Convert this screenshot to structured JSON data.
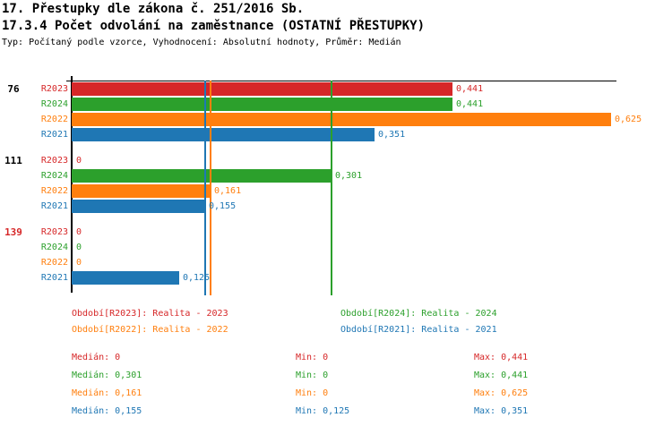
{
  "header": {
    "title_line1": "17. Přestupky dle zákona č. 251/2016 Sb.",
    "title_line2": "17.3.4 Počet odvolání na zaměstnance (OSTATNÍ PŘESTUPKY)",
    "subtitle": "Typ: Počítaný podle vzorce, Vyhodnocení: Absolutní hodnoty, Průměr: Medián"
  },
  "colors": {
    "R2023": "#d62728",
    "R2024": "#2ca02c",
    "R2022": "#ff7f0e",
    "R2021": "#1f77b4",
    "axis": "#000000",
    "group_label_default": "#000000",
    "group_label_highlight": "#d62728"
  },
  "chart_data": {
    "type": "bar",
    "orientation": "horizontal",
    "title": "17.3.4 Počet odvolání na zaměstnance (OSTATNÍ PŘESTUPKY)",
    "categories": [
      "76",
      "111",
      "139"
    ],
    "row_order": [
      "R2023",
      "R2024",
      "R2022",
      "R2021"
    ],
    "series": [
      {
        "name": "R2023",
        "legend": "Období[R2023]: Realita - 2023",
        "color": "#d62728",
        "values": [
          0.441,
          0,
          0
        ]
      },
      {
        "name": "R2024",
        "legend": "Období[R2024]: Realita - 2024",
        "color": "#2ca02c",
        "values": [
          0.441,
          0.301,
          0
        ]
      },
      {
        "name": "R2022",
        "legend": "Období[R2022]: Realita - 2022",
        "color": "#ff7f0e",
        "values": [
          0.625,
          0.161,
          0
        ]
      },
      {
        "name": "R2021",
        "legend": "Období[R2021]: Realita - 2021",
        "color": "#1f77b4",
        "values": [
          0.351,
          0.155,
          0.125
        ]
      }
    ],
    "medians": {
      "R2023": 0,
      "R2024": 0.301,
      "R2022": 0.161,
      "R2021": 0.155
    },
    "stats": {
      "R2023": {
        "median": 0,
        "min": 0,
        "max": 0.441
      },
      "R2024": {
        "median": 0.301,
        "min": 0,
        "max": 0.441
      },
      "R2022": {
        "median": 0.161,
        "min": 0,
        "max": 0.625
      },
      "R2021": {
        "median": 0.155,
        "min": 0.125,
        "max": 0.351
      }
    },
    "xlim": [
      0,
      0.64
    ],
    "grid": false,
    "legend_position": "bottom",
    "decimal_separator": ","
  },
  "groups": [
    {
      "label": "76",
      "label_color": "#000000",
      "bars": [
        {
          "series": "R2023",
          "value": 0.441,
          "display": "0,441"
        },
        {
          "series": "R2024",
          "value": 0.441,
          "display": "0,441"
        },
        {
          "series": "R2022",
          "value": 0.625,
          "display": "0,625"
        },
        {
          "series": "R2021",
          "value": 0.351,
          "display": "0,351"
        }
      ]
    },
    {
      "label": "111",
      "label_color": "#000000",
      "bars": [
        {
          "series": "R2023",
          "value": 0,
          "display": "0"
        },
        {
          "series": "R2024",
          "value": 0.301,
          "display": "0,301"
        },
        {
          "series": "R2022",
          "value": 0.161,
          "display": "0,161"
        },
        {
          "series": "R2021",
          "value": 0.155,
          "display": "0,155"
        }
      ]
    },
    {
      "label": "139",
      "label_color": "#d62728",
      "bars": [
        {
          "series": "R2023",
          "value": 0,
          "display": "0"
        },
        {
          "series": "R2024",
          "value": 0,
          "display": "0"
        },
        {
          "series": "R2022",
          "value": 0,
          "display": "0"
        },
        {
          "series": "R2021",
          "value": 0.125,
          "display": "0,125"
        }
      ]
    }
  ],
  "legend": {
    "items": [
      {
        "series": "R2023",
        "text": "Období[R2023]: Realita - 2023"
      },
      {
        "series": "R2024",
        "text": "Období[R2024]: Realita - 2024"
      },
      {
        "series": "R2022",
        "text": "Období[R2022]: Realita - 2022"
      },
      {
        "series": "R2021",
        "text": "Období[R2021]: Realita - 2021"
      }
    ]
  },
  "stats": {
    "rows": [
      {
        "series": "R2023",
        "median": "Medián: 0",
        "min": "Min: 0",
        "max": "Max: 0,441"
      },
      {
        "series": "R2024",
        "median": "Medián: 0,301",
        "min": "Min: 0",
        "max": "Max: 0,441"
      },
      {
        "series": "R2022",
        "median": "Medián: 0,161",
        "min": "Min: 0",
        "max": "Max: 0,625"
      },
      {
        "series": "R2021",
        "median": "Medián: 0,155",
        "min": "Min: 0,125",
        "max": "Max: 0,351"
      }
    ]
  }
}
